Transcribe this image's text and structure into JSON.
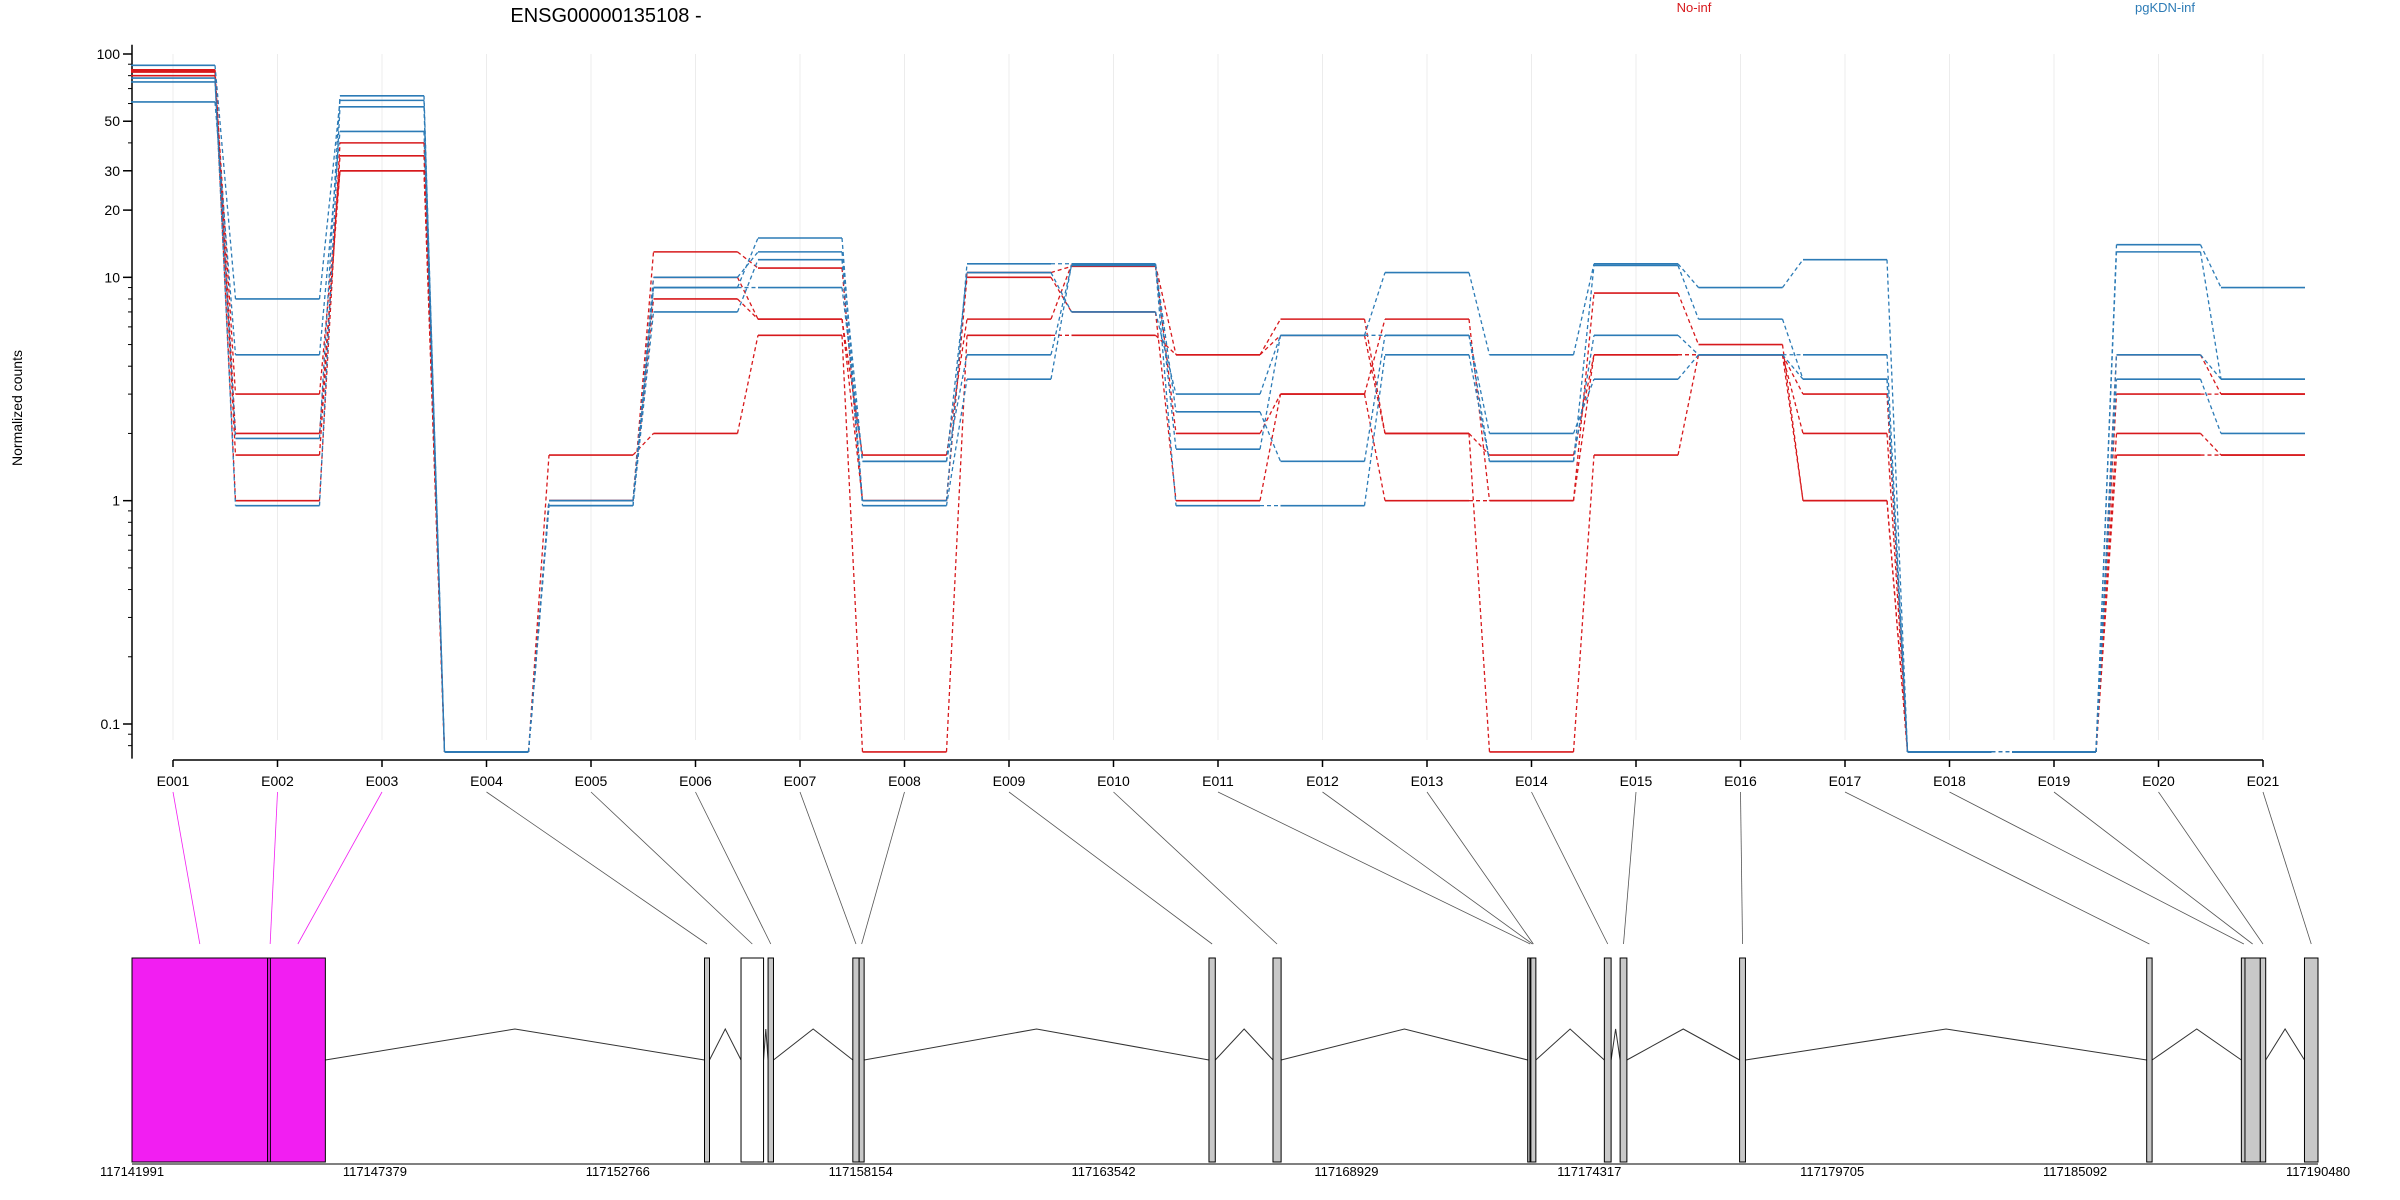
{
  "title": "ENSG00000135108 -",
  "ylabel": "Normalized counts",
  "legend": [
    {
      "name": "No-inf",
      "color": "#d7191c"
    },
    {
      "name": "pgKDN-inf",
      "color": "#2c7bb6"
    }
  ],
  "chart_data": {
    "type": "line",
    "scale": "log",
    "ylim": [
      0.07,
      110
    ],
    "yticks": [
      {
        "v": 100,
        "label": "100"
      },
      {
        "v": 50,
        "label": "50"
      },
      {
        "v": 30,
        "label": "30"
      },
      {
        "v": 20,
        "label": "20"
      },
      {
        "v": 10,
        "label": "10"
      },
      {
        "v": 1,
        "label": "1"
      },
      {
        "v": 0.1,
        "label": "0.1"
      }
    ],
    "grid": true,
    "legend_position": "top",
    "categories": [
      "E001",
      "E002",
      "E003",
      "E004",
      "E005",
      "E006",
      "E007",
      "E008",
      "E009",
      "E010",
      "E011",
      "E012",
      "E013",
      "E014",
      "E015",
      "E016",
      "E017",
      "E018",
      "E019",
      "E020",
      "E021"
    ],
    "series": [
      {
        "group": "No-inf",
        "color": "#d7191c",
        "values": [
          85,
          2.0,
          30,
          0.075,
          1.6,
          2.0,
          5.5,
          0.075,
          5.5,
          5.5,
          4.5,
          5.5,
          2.0,
          0.075,
          1.6,
          4.5,
          1.0,
          0.075,
          0.075,
          1.6,
          1.6
        ]
      },
      {
        "group": "No-inf",
        "color": "#d7191c",
        "values": [
          80,
          1.0,
          40,
          0.075,
          1.0,
          13,
          11,
          1.0,
          10,
          7,
          1.0,
          3.0,
          1.0,
          1.0,
          8.5,
          5.0,
          1.0,
          0.075,
          0.075,
          2.0,
          1.6
        ]
      },
      {
        "group": "No-inf",
        "color": "#d7191c",
        "values": [
          84,
          1.6,
          35,
          0.075,
          1.0,
          8,
          6.5,
          1.0,
          10.5,
          11.2,
          2.0,
          3.0,
          6.5,
          1.0,
          4.5,
          4.5,
          3.0,
          0.075,
          0.075,
          3.0,
          3.0
        ]
      },
      {
        "group": "No-inf",
        "color": "#d7191c",
        "values": [
          83,
          3.0,
          30,
          0.075,
          1.0,
          10,
          6.5,
          1.6,
          6.5,
          11.4,
          4.5,
          6.5,
          2.0,
          1.6,
          4.5,
          4.5,
          2.0,
          0.075,
          0.075,
          4.5,
          3.0
        ]
      },
      {
        "group": "pgKDN-inf",
        "color": "#2c7bb6",
        "values": [
          89,
          8,
          62,
          0.075,
          0.95,
          9,
          15,
          1.0,
          11.5,
          11.5,
          1.7,
          5.5,
          10.5,
          4.5,
          11.5,
          9,
          12,
          0.075,
          0.075,
          14,
          9
        ]
      },
      {
        "group": "pgKDN-inf",
        "color": "#2c7bb6",
        "values": [
          75,
          1.9,
          65,
          0.075,
          1.0,
          10,
          13,
          1.5,
          10.5,
          7,
          3.0,
          5.5,
          5.5,
          1.5,
          5.5,
          4.5,
          4.5,
          0.075,
          0.075,
          4.5,
          3.5
        ]
      },
      {
        "group": "pgKDN-inf",
        "color": "#2c7bb6",
        "values": [
          61,
          4.5,
          45,
          0.075,
          1.0,
          9,
          9,
          1.5,
          4.5,
          11.3,
          0.95,
          0.95,
          4.5,
          1.5,
          11.3,
          6.5,
          3.5,
          0.075,
          0.075,
          13,
          3.5
        ]
      },
      {
        "group": "pgKDN-inf",
        "color": "#2c7bb6",
        "values": [
          78,
          0.95,
          58,
          0.075,
          0.95,
          7,
          12,
          0.95,
          3.5,
          11.4,
          2.5,
          1.5,
          5.5,
          2.0,
          3.5,
          4.5,
          3.5,
          0.075,
          0.075,
          3.5,
          2.0
        ]
      }
    ]
  },
  "gene_model": {
    "start": 117141991,
    "end": 117190480,
    "axis_labels": [
      "117141991",
      "117147379",
      "117152766",
      "117158154",
      "117163542",
      "117168929",
      "117174317",
      "117179705",
      "117185092",
      "117190480"
    ],
    "highlight_color": "#f21ef2",
    "exon_fill": "#c8c8c8",
    "exons": [
      {
        "id": "E001",
        "start": 117141991,
        "end": 117145000,
        "highlight": true
      },
      {
        "id": "E002",
        "start": 117145000,
        "end": 117145060,
        "highlight": true
      },
      {
        "id": "E003",
        "start": 117145060,
        "end": 117146280,
        "highlight": true
      },
      {
        "id": "E004",
        "start": 117154690,
        "end": 117154740,
        "highlight": false
      },
      {
        "id": "E005",
        "start": 117155500,
        "end": 117156000,
        "highlight": false
      },
      {
        "id": "E006",
        "start": 117156100,
        "end": 117156220,
        "highlight": false
      },
      {
        "id": "E007",
        "start": 117157980,
        "end": 117158120,
        "highlight": false
      },
      {
        "id": "E008",
        "start": 117158120,
        "end": 117158200,
        "highlight": false
      },
      {
        "id": "E009",
        "start": 117165880,
        "end": 117166020,
        "highlight": false
      },
      {
        "id": "E010",
        "start": 117167300,
        "end": 117167480,
        "highlight": false
      },
      {
        "id": "E011",
        "start": 117172950,
        "end": 117173000,
        "highlight": false
      },
      {
        "id": "E012",
        "start": 117173000,
        "end": 117173020,
        "highlight": false
      },
      {
        "id": "E013",
        "start": 117173020,
        "end": 117173050,
        "highlight": false
      },
      {
        "id": "E014",
        "start": 117174650,
        "end": 117174800,
        "highlight": false
      },
      {
        "id": "E015",
        "start": 117175000,
        "end": 117175150,
        "highlight": false
      },
      {
        "id": "E016",
        "start": 117177650,
        "end": 117177780,
        "highlight": false
      },
      {
        "id": "E017",
        "start": 117186680,
        "end": 117186800,
        "highlight": false
      },
      {
        "id": "E018",
        "start": 117188780,
        "end": 117188860,
        "highlight": false
      },
      {
        "id": "E019",
        "start": 117188860,
        "end": 117189200,
        "highlight": false
      },
      {
        "id": "E020",
        "start": 117189200,
        "end": 117189320,
        "highlight": false
      },
      {
        "id": "E021",
        "start": 117190180,
        "end": 117190480,
        "highlight": false
      }
    ]
  }
}
